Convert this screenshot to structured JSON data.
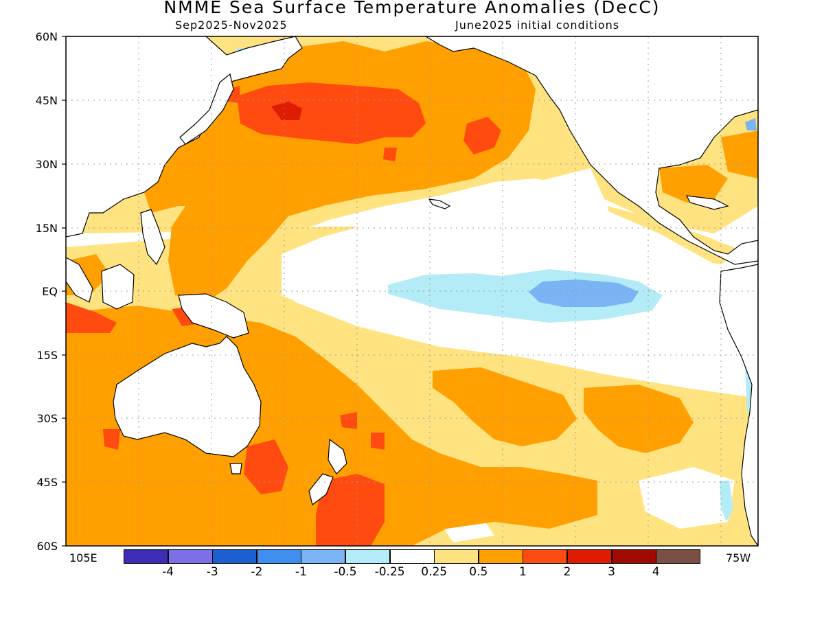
{
  "title": "NMME Sea Surface Temperature Anomalies (DecC)",
  "subtitle_left": "Sep2025-Nov2025",
  "subtitle_right": "June2025 initial conditions",
  "lat_labels": [
    "60N",
    "45N",
    "30N",
    "15N",
    "EQ",
    "15S",
    "30S",
    "45S",
    "60S"
  ],
  "lon_left": "105E",
  "lon_right": "75W",
  "legend": {
    "colors": [
      "#3c2db4",
      "#7c6fe8",
      "#1c5fd0",
      "#3f8ff0",
      "#7ab4f4",
      "#b3ecf6",
      "#ffffff",
      "#ffe380",
      "#ffa000",
      "#ff4a10",
      "#e01c00",
      "#a00a00",
      "#7a5044"
    ],
    "labels": [
      "-4",
      "-3",
      "-2",
      "-1",
      "-0.5",
      "-0.25",
      "0.25",
      "0.5",
      "1",
      "2",
      "3",
      "4"
    ]
  },
  "colors": {
    "land": "#ffffff",
    "coast": "#000000",
    "grid": "#9a9a9a"
  }
}
